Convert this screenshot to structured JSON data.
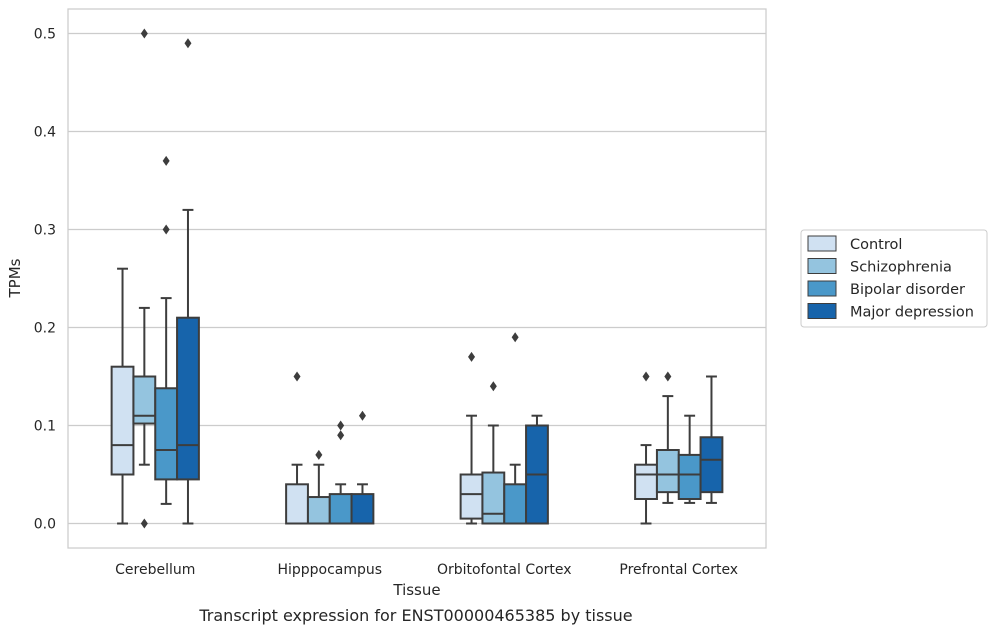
{
  "caption": "Transcript expression for ENST00000465385 by tissue",
  "chart_data": {
    "type": "box",
    "xlabel": "Tissue",
    "ylabel": "TPMs",
    "ylim": [
      -0.025,
      0.525
    ],
    "yticks": [
      0.0,
      0.1,
      0.2,
      0.3,
      0.4,
      0.5
    ],
    "ytick_labels": [
      "0.0",
      "0.1",
      "0.2",
      "0.3",
      "0.4",
      "0.5"
    ],
    "grid": "horizontal",
    "legend_position": "right",
    "categories": [
      "Cerebellum",
      "Hipppocampus",
      "Orbitofontal Cortex",
      "Prefrontal Cortex"
    ],
    "series": [
      {
        "name": "Control",
        "color": "#d0e1f2",
        "boxes": [
          {
            "whislo": 0.0,
            "q1": 0.05,
            "med": 0.08,
            "q3": 0.16,
            "whishi": 0.26,
            "fliers": []
          },
          {
            "whislo": 0.0,
            "q1": 0.0,
            "med": 0.0,
            "q3": 0.04,
            "whishi": 0.06,
            "fliers": [
              0.15
            ]
          },
          {
            "whislo": 0.0,
            "q1": 0.005,
            "med": 0.03,
            "q3": 0.05,
            "whishi": 0.11,
            "fliers": [
              0.17
            ]
          },
          {
            "whislo": 0.0,
            "q1": 0.025,
            "med": 0.05,
            "q3": 0.06,
            "whishi": 0.08,
            "fliers": [
              0.15
            ]
          }
        ]
      },
      {
        "name": "Schizophrenia",
        "color": "#94c4df",
        "boxes": [
          {
            "whislo": 0.06,
            "q1": 0.102,
            "med": 0.11,
            "q3": 0.15,
            "whishi": 0.22,
            "fliers": [
              0.5,
              0.0
            ]
          },
          {
            "whislo": 0.0,
            "q1": 0.0,
            "med": 0.0,
            "q3": 0.027,
            "whishi": 0.06,
            "fliers": [
              0.07
            ]
          },
          {
            "whislo": 0.0,
            "q1": 0.0,
            "med": 0.01,
            "q3": 0.052,
            "whishi": 0.1,
            "fliers": [
              0.14
            ]
          },
          {
            "whislo": 0.021,
            "q1": 0.032,
            "med": 0.05,
            "q3": 0.075,
            "whishi": 0.13,
            "fliers": [
              0.15
            ]
          }
        ]
      },
      {
        "name": "Bipolar disorder",
        "color": "#4a98c9",
        "boxes": [
          {
            "whislo": 0.02,
            "q1": 0.045,
            "med": 0.075,
            "q3": 0.138,
            "whishi": 0.23,
            "fliers": [
              0.37,
              0.3
            ]
          },
          {
            "whislo": 0.0,
            "q1": 0.0,
            "med": 0.0,
            "q3": 0.03,
            "whishi": 0.04,
            "fliers": [
              0.1,
              0.09
            ]
          },
          {
            "whislo": 0.0,
            "q1": 0.0,
            "med": 0.0,
            "q3": 0.04,
            "whishi": 0.06,
            "fliers": [
              0.19
            ]
          },
          {
            "whislo": 0.021,
            "q1": 0.025,
            "med": 0.05,
            "q3": 0.07,
            "whishi": 0.11,
            "fliers": []
          }
        ]
      },
      {
        "name": "Major depression",
        "color": "#1764ab",
        "boxes": [
          {
            "whislo": 0.0,
            "q1": 0.045,
            "med": 0.08,
            "q3": 0.21,
            "whishi": 0.32,
            "fliers": [
              0.49
            ]
          },
          {
            "whislo": 0.0,
            "q1": 0.0,
            "med": 0.0,
            "q3": 0.03,
            "whishi": 0.04,
            "fliers": [
              0.11
            ]
          },
          {
            "whislo": 0.0,
            "q1": 0.0,
            "med": 0.05,
            "q3": 0.1,
            "whishi": 0.11,
            "fliers": []
          },
          {
            "whislo": 0.021,
            "q1": 0.032,
            "med": 0.065,
            "q3": 0.088,
            "whishi": 0.15,
            "fliers": []
          }
        ]
      }
    ]
  }
}
